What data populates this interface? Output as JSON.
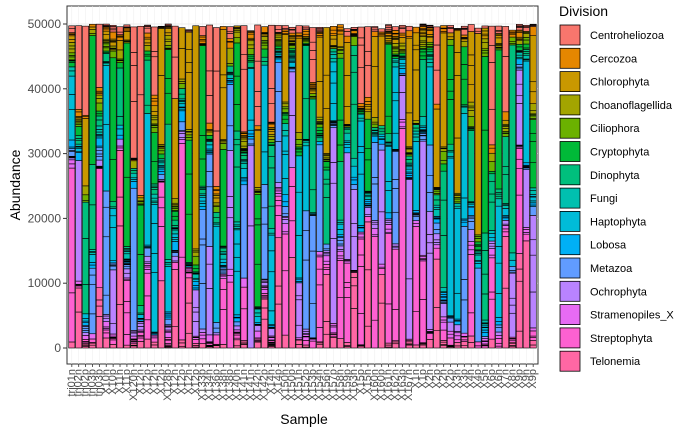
{
  "chart_data": {
    "type": "bar",
    "stacked": true,
    "xlabel": "Sample",
    "ylabel": "Abundance",
    "ylim": [
      0,
      50000
    ],
    "yticks": [
      0,
      10000,
      20000,
      30000,
      40000,
      50000
    ],
    "grid": true,
    "legend_title": "Division",
    "legend_position": "right",
    "categories": [
      "trj01n",
      "trj02n",
      "trj02p",
      "trj03p",
      "trj03p",
      "X10n",
      "X10p",
      "X11n",
      "X11p",
      "X120n",
      "X12n",
      "X12p",
      "X12n",
      "X12p",
      "X128p",
      "X12n",
      "X12p",
      "X12n",
      "X12p",
      "X133p",
      "X134n",
      "X136p",
      "X138n",
      "X138p",
      "X140n",
      "X141n",
      "X141n",
      "X142n",
      "X142p",
      "X14n",
      "X14p",
      "X150n",
      "X150p",
      "X151n",
      "X152p",
      "X153p",
      "X154n",
      "X156n",
      "X157p",
      "X158n",
      "X159p",
      "X163n",
      "X15p",
      "X15n",
      "X160n",
      "X160p",
      "X161n",
      "X162n",
      "X163p",
      "X167n",
      "X1n",
      "X1p",
      "X2n",
      "X2p",
      "X2n",
      "X2p",
      "X3n",
      "X3p",
      "X4n",
      "X4p",
      "X5n",
      "X6p",
      "X6n",
      "X7n",
      "X8n",
      "X9p",
      "X9n",
      "X9p"
    ],
    "series_names": [
      "Centroheliozoa",
      "Cercozoa",
      "Chlorophyta",
      "Choanoflagellida",
      "Ciliophora",
      "Cryptophyta",
      "Dinophyta",
      "Fungi",
      "Haptophyta",
      "Lobosa",
      "Metazoa",
      "Ochrophyta",
      "Stramenopiles_X",
      "Streptophyta",
      "Telonemia"
    ],
    "colors": [
      "#F8766D",
      "#E58700",
      "#C99800",
      "#A3A500",
      "#6BB100",
      "#00BA38",
      "#00BF7D",
      "#00C0AF",
      "#00BCD8",
      "#00B0F6",
      "#619CFF",
      "#B983FF",
      "#E76BF3",
      "#FD61D1",
      "#FF67A4"
    ]
  }
}
